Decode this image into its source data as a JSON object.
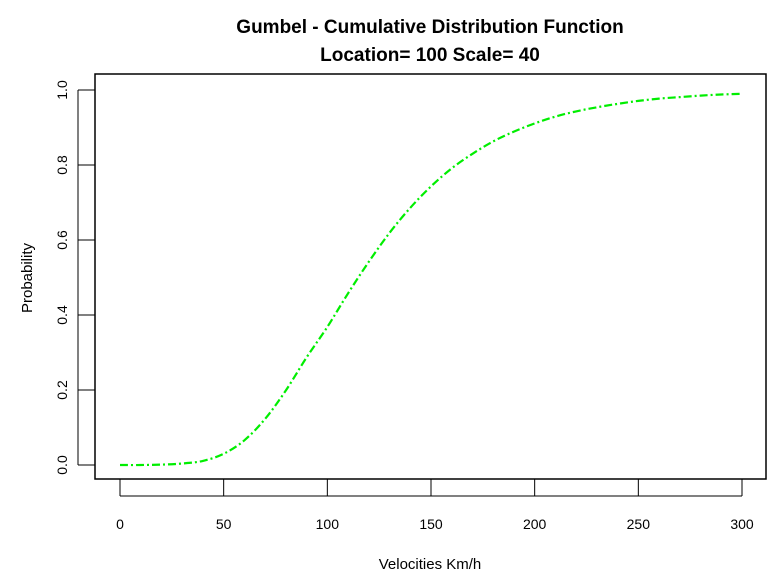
{
  "chart_data": {
    "type": "line",
    "title": "Gumbel - Cumulative Distribution Function",
    "subtitle": "Location= 100  Scale= 40",
    "xlabel": "Velocities Km/h",
    "ylabel": "Probability",
    "xlim": [
      0,
      300
    ],
    "ylim": [
      0,
      1
    ],
    "x_ticks": [
      "0",
      "50",
      "100",
      "150",
      "200",
      "250",
      "300"
    ],
    "y_ticks": [
      "0.0",
      "0.2",
      "0.4",
      "0.6",
      "0.8",
      "1.0"
    ],
    "grid": false,
    "legend": "none",
    "line_color": "#00ee00",
    "line_style": "dot-dash",
    "series": [
      {
        "x": [
          0,
          10,
          20,
          30,
          40,
          50,
          60,
          70,
          80,
          90,
          100,
          110,
          120,
          130,
          140,
          150,
          160,
          170,
          180,
          190,
          200,
          210,
          220,
          230,
          240,
          250,
          260,
          270,
          280,
          290,
          300
        ],
        "values": [
          0.0,
          0.0,
          0.001,
          0.004,
          0.011,
          0.03,
          0.066,
          0.123,
          0.199,
          0.287,
          0.368,
          0.458,
          0.542,
          0.619,
          0.686,
          0.743,
          0.791,
          0.83,
          0.863,
          0.889,
          0.911,
          0.929,
          0.943,
          0.954,
          0.963,
          0.971,
          0.977,
          0.981,
          0.985,
          0.988,
          0.99
        ]
      }
    ]
  }
}
